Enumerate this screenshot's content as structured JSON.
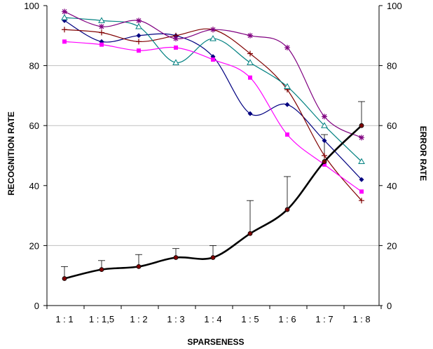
{
  "chart_data": {
    "type": "line",
    "xlabel": "SPARSENESS",
    "ylabel_left": "RECOGNITION RATE",
    "ylabel_right": "ERROR RATE",
    "categories": [
      "1 : 1",
      "1 : 1,5",
      "1 : 2",
      "1 : 3",
      "1 : 4",
      "1 : 5",
      "1 : 6",
      "1 : 7",
      "1 : 8"
    ],
    "ylim": [
      0,
      100
    ],
    "yticks": [
      "0",
      "20",
      "40",
      "60",
      "80",
      "100"
    ],
    "y2lim": [
      0,
      100
    ],
    "y2ticks": [
      "0",
      "20",
      "40",
      "60",
      "80",
      "100"
    ],
    "grid": "horizontal at 20, 60, 80",
    "series": [
      {
        "marker": "diamond",
        "color": "#000080",
        "values": [
          95,
          88,
          90,
          90,
          83,
          64,
          67,
          55,
          42
        ]
      },
      {
        "marker": "plus",
        "color": "#800000",
        "values": [
          92,
          91,
          88,
          90,
          92,
          84,
          72,
          50,
          35
        ]
      },
      {
        "marker": "triangle",
        "color": "#008080",
        "values": [
          96,
          95,
          93,
          81,
          89,
          81,
          73,
          60,
          48
        ]
      },
      {
        "marker": "star",
        "color": "#800080",
        "values": [
          98,
          93,
          95,
          89,
          92,
          90,
          86,
          63,
          56
        ]
      },
      {
        "marker": "square",
        "color": "#ff00ff",
        "values": [
          88,
          87,
          85,
          86,
          82,
          76,
          57,
          47,
          38
        ]
      }
    ],
    "error_rate": {
      "axis": "right",
      "color": "#000000",
      "values": [
        9,
        12,
        13,
        16,
        16,
        24,
        32,
        48,
        60
      ],
      "error_up": [
        4,
        3,
        4,
        3,
        4,
        11,
        11,
        9,
        8
      ]
    }
  }
}
